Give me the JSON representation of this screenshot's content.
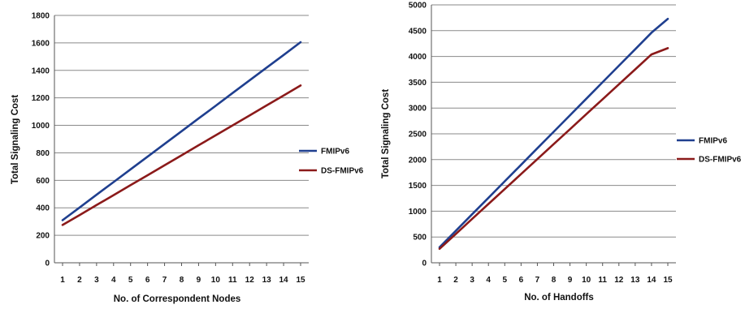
{
  "chart_data": [
    {
      "type": "line",
      "title": "",
      "xlabel": "No. of Correspondent Nodes",
      "ylabel": "Total Signaling Cost",
      "x": [
        1,
        2,
        3,
        4,
        5,
        6,
        7,
        8,
        9,
        10,
        11,
        12,
        13,
        14,
        15
      ],
      "xlim": [
        1,
        15
      ],
      "ylim": [
        0,
        1800
      ],
      "yticks": [
        0,
        200,
        400,
        600,
        800,
        1000,
        1200,
        1400,
        1600,
        1800
      ],
      "grid": true,
      "legend_position": "right",
      "series": [
        {
          "name": "FMIPv6",
          "color": "#1f3f8f",
          "values": [
            310,
            402,
            495,
            587,
            680,
            772,
            865,
            957,
            1050,
            1142,
            1235,
            1327,
            1420,
            1512,
            1605
          ]
        },
        {
          "name": "DS-FMIPv6",
          "color": "#8b1a1a",
          "values": [
            275,
            347,
            420,
            492,
            565,
            637,
            710,
            782,
            855,
            927,
            1000,
            1072,
            1145,
            1217,
            1290
          ]
        }
      ]
    },
    {
      "type": "line",
      "title": "",
      "xlabel": "No. of Handoffs",
      "ylabel": "Total Signaling Cost",
      "x": [
        1,
        2,
        3,
        4,
        5,
        6,
        7,
        8,
        9,
        10,
        11,
        12,
        13,
        14,
        15
      ],
      "xlim": [
        1,
        15
      ],
      "ylim": [
        0,
        5000
      ],
      "yticks": [
        0,
        500,
        1000,
        1500,
        2000,
        2500,
        3000,
        3500,
        4000,
        4500,
        5000
      ],
      "grid": true,
      "legend_position": "right",
      "series": [
        {
          "name": "FMIPv6",
          "color": "#1f3f8f",
          "values": [
            300,
            620,
            940,
            1260,
            1580,
            1900,
            2220,
            2540,
            2860,
            3180,
            3500,
            3820,
            4140,
            4460,
            4730
          ]
        },
        {
          "name": "DS-FMIPv6",
          "color": "#8b1a1a",
          "values": [
            270,
            560,
            850,
            1140,
            1430,
            1720,
            2010,
            2300,
            2590,
            2880,
            3170,
            3460,
            3750,
            4040,
            4160
          ]
        }
      ]
    }
  ]
}
